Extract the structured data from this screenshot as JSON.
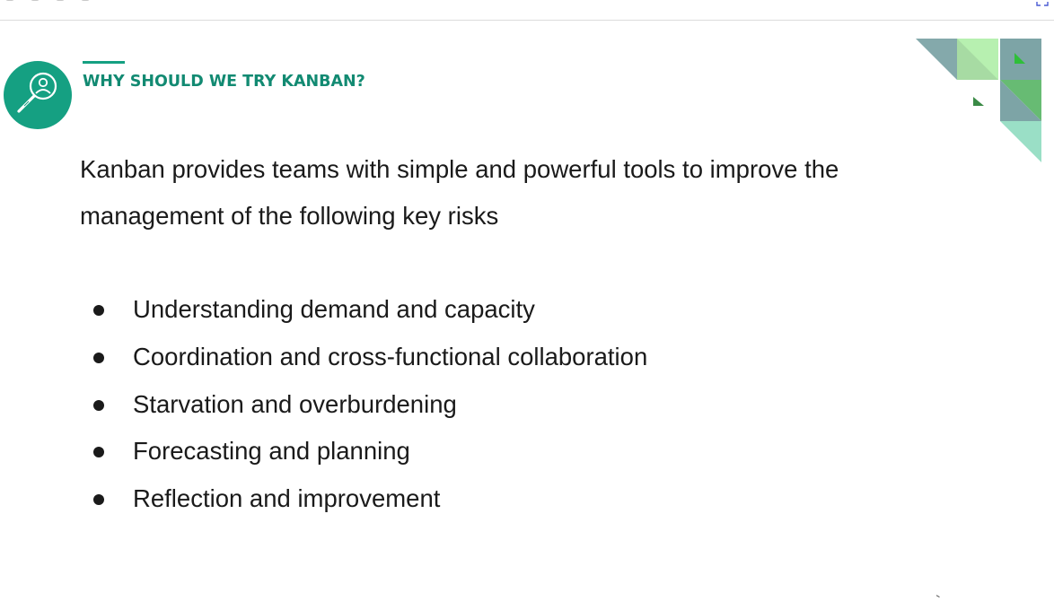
{
  "slide": {
    "title": "WHY SHOULD WE TRY KANBAN?",
    "intro": "Kanban provides teams with simple and powerful tools to improve the management of the following key risks",
    "risks": [
      "Understanding demand and capacity",
      "Coordination and cross-functional collaboration",
      "Starvation and overburdening",
      "Forecasting and planning",
      "Reflection and improvement"
    ]
  },
  "icons": {
    "header": "person-magnifier-icon",
    "fullscreen": "fullscreen-icon"
  },
  "colors": {
    "accent": "#15a082",
    "title": "#128a72",
    "text": "#1a1a1a",
    "deco_gray": "#6f9a9c",
    "deco_light_green": "#b7f0b0",
    "deco_green": "#2fbf3a",
    "deco_mint": "#8fdcc0"
  }
}
